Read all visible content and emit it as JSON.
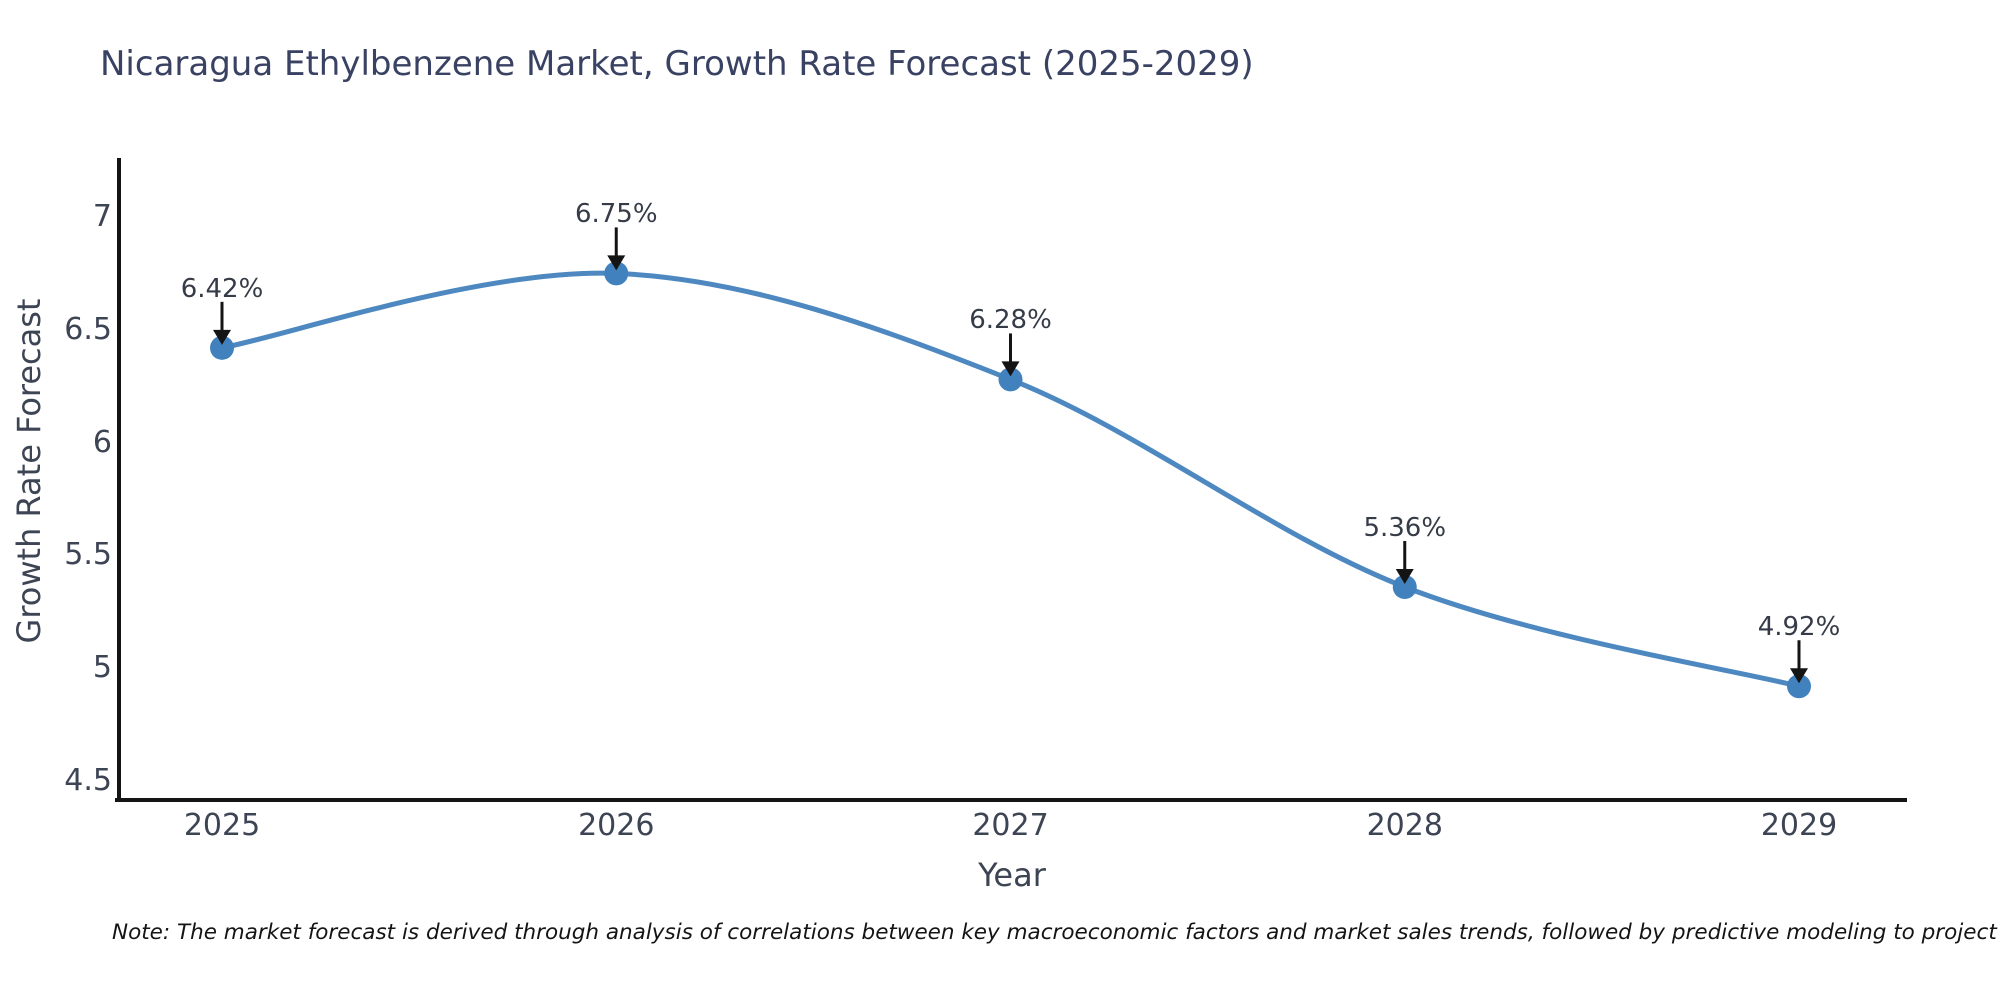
{
  "chart_data": {
    "type": "line",
    "title": "Nicaragua Ethylbenzene Market, Growth Rate Forecast (2025-2029)",
    "xlabel": "Year",
    "ylabel": "Growth Rate Forecast",
    "categories": [
      "2025",
      "2026",
      "2027",
      "2028",
      "2029"
    ],
    "values": [
      6.42,
      6.75,
      6.28,
      5.36,
      4.92
    ],
    "point_labels": [
      "6.42%",
      "6.75%",
      "6.28%",
      "5.36%",
      "4.92%"
    ],
    "ytick_values": [
      4.5,
      5,
      5.5,
      6,
      6.5,
      7
    ],
    "ytick_labels": [
      "4.5",
      "5",
      "5.5",
      "6",
      "6.5",
      "7"
    ],
    "ylim": [
      4.42,
      7.26
    ],
    "grid": false,
    "legend": null,
    "line_style": "smooth-spline",
    "marker": "circle",
    "annotation_style": "down-arrow-above-point"
  },
  "note": {
    "text": "Note: The market forecast is derived through analysis of correlations between key macroeconomic factors and market sales trends, followed by predictive modeling to project future sales"
  },
  "colors": {
    "line": "#4e88c0",
    "marker": "#4181bd",
    "arrow": "#141414",
    "spine": "#141414",
    "title_text": "#394263",
    "axis_text": "#3d4454",
    "annotation_text": "#353b47",
    "note_text": "#141414",
    "background": "#ffffff"
  }
}
